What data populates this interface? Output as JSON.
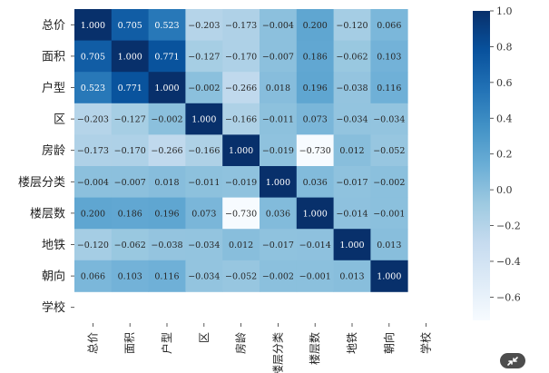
{
  "chart_data": {
    "type": "heatmap",
    "row_labels": [
      "总价",
      "面积",
      "户型",
      "区",
      "房龄",
      "楼层分类",
      "楼层数",
      "地铁",
      "朝向",
      "学校"
    ],
    "col_labels": [
      "总价",
      "面积",
      "户型",
      "区",
      "房龄",
      "楼层分类",
      "楼层数",
      "地铁",
      "朝向",
      "学校"
    ],
    "matrix": [
      [
        1.0,
        0.705,
        0.523,
        -0.203,
        -0.173,
        -0.004,
        0.2,
        -0.12,
        0.066,
        null
      ],
      [
        0.705,
        1.0,
        0.771,
        -0.127,
        -0.17,
        -0.007,
        0.186,
        -0.062,
        0.103,
        null
      ],
      [
        0.523,
        0.771,
        1.0,
        -0.002,
        -0.266,
        0.018,
        0.196,
        -0.038,
        0.116,
        null
      ],
      [
        -0.203,
        -0.127,
        -0.002,
        1.0,
        -0.166,
        -0.011,
        0.073,
        -0.034,
        -0.034,
        null
      ],
      [
        -0.173,
        -0.17,
        -0.266,
        -0.166,
        1.0,
        -0.019,
        -0.73,
        0.012,
        -0.052,
        null
      ],
      [
        -0.004,
        -0.007,
        0.018,
        -0.011,
        -0.019,
        1.0,
        0.036,
        -0.017,
        -0.002,
        null
      ],
      [
        0.2,
        0.186,
        0.196,
        0.073,
        -0.73,
        0.036,
        1.0,
        -0.014,
        -0.001,
        null
      ],
      [
        -0.12,
        -0.062,
        -0.038,
        -0.034,
        0.012,
        -0.017,
        -0.014,
        1.0,
        0.013,
        null
      ],
      [
        0.066,
        0.103,
        0.116,
        -0.034,
        -0.052,
        -0.002,
        -0.001,
        0.013,
        1.0,
        null
      ],
      [
        null,
        null,
        null,
        null,
        null,
        null,
        null,
        null,
        null,
        null
      ]
    ],
    "value_format": "3 decimals",
    "colormap": "Blues",
    "vmin": -0.73,
    "vmax": 1.0,
    "colorbar_ticks": [
      1.0,
      0.8,
      0.6,
      0.4,
      0.2,
      0.0,
      -0.2,
      -0.4,
      -0.6
    ],
    "colorbar_tick_labels": [
      "1.0",
      "0.8",
      "0.6",
      "0.4",
      "0.2",
      "0.0",
      "−0.2",
      "−0.4",
      "−0.6"
    ],
    "colors": {
      "light": "#f7fbff",
      "dark": "#08306b",
      "text_light": "#ffffff",
      "text_dark": "#262626"
    }
  },
  "toolbar": {
    "corner_icon": "collapse-arrows-icon"
  }
}
